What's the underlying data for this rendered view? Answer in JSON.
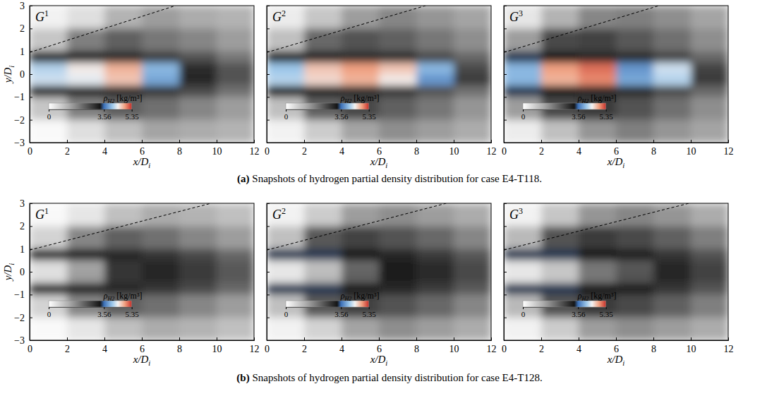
{
  "chart_data": [
    {
      "type": "heatmap",
      "title": "G1",
      "x_label": "x/Di",
      "y_label": "y/Di",
      "tick_labels": true,
      "xlim": [
        0,
        12
      ],
      "ylim": [
        -3,
        3
      ],
      "xticks": [
        0,
        2,
        4,
        6,
        8,
        10,
        12
      ],
      "yticks": [
        -3,
        -2,
        -1,
        0,
        1,
        2,
        3
      ],
      "x_edges": [
        0,
        2,
        4,
        6,
        8,
        10,
        12
      ],
      "y_edges": [
        3,
        2,
        1,
        0.5,
        0,
        -0.5,
        -1,
        -2,
        -3
      ],
      "cells": [
        [
          0.2,
          0.5,
          1.2,
          1.5,
          1.3,
          1.2
        ],
        [
          0.9,
          1.9,
          2.3,
          2.0,
          1.8,
          1.5
        ],
        [
          3.3,
          3.3,
          3.1,
          2.8,
          2.5,
          2.0
        ],
        [
          4.2,
          4.5,
          4.8,
          4.0,
          3.0,
          2.5
        ],
        [
          4.3,
          4.4,
          4.7,
          3.9,
          3.1,
          2.5
        ],
        [
          3.3,
          3.3,
          3.1,
          2.9,
          2.6,
          2.1
        ],
        [
          0.9,
          1.9,
          2.3,
          2.1,
          1.8,
          1.5
        ],
        [
          0.1,
          0.5,
          1.0,
          1.4,
          1.3,
          1.2
        ]
      ],
      "colorbar": {
        "label": "ρH2 [kg/m³]",
        "range": [
          0,
          5.35
        ],
        "ticks": [
          0,
          3.56,
          5.35
        ]
      },
      "series": [
        {
          "type": "line",
          "line_style": "dashed",
          "color": "#000000",
          "x": [
            0,
            7.8
          ],
          "y": [
            0.95,
            3
          ]
        }
      ]
    },
    {
      "type": "heatmap",
      "title": "G2",
      "x_label": "x/Di",
      "tick_labels": "x",
      "xlim": [
        0,
        12
      ],
      "ylim": [
        -3,
        3
      ],
      "xticks": [
        0,
        2,
        4,
        6,
        8,
        10,
        12
      ],
      "yticks": [
        -3,
        -2,
        -1,
        0,
        1,
        2,
        3
      ],
      "x_edges": [
        0,
        2,
        4,
        6,
        8,
        10,
        12
      ],
      "y_edges": [
        3,
        2,
        1,
        0.5,
        0,
        -0.5,
        -1,
        -2,
        -3
      ],
      "cells": [
        [
          0.3,
          0.9,
          1.5,
          1.8,
          1.6,
          1.4
        ],
        [
          1.0,
          2.2,
          2.5,
          2.3,
          2.0,
          1.7
        ],
        [
          3.3,
          3.2,
          3.0,
          3.0,
          2.6,
          2.2
        ],
        [
          4.1,
          4.7,
          4.9,
          4.7,
          4.0,
          2.6
        ],
        [
          4.2,
          4.6,
          4.8,
          4.5,
          3.8,
          2.8
        ],
        [
          3.3,
          3.2,
          3.0,
          2.9,
          2.5,
          2.1
        ],
        [
          1.0,
          2.3,
          2.6,
          2.3,
          2.0,
          1.6
        ],
        [
          0.2,
          0.8,
          1.4,
          1.7,
          1.5,
          1.3
        ]
      ],
      "colorbar": {
        "label": "ρH2 [kg/m³]",
        "range": [
          0,
          5.35
        ],
        "ticks": [
          0,
          3.56,
          5.35
        ]
      },
      "series": [
        {
          "type": "line",
          "line_style": "dashed",
          "color": "#000000",
          "x": [
            0,
            8.5
          ],
          "y": [
            0.95,
            3
          ]
        }
      ]
    },
    {
      "type": "heatmap",
      "title": "G3",
      "x_label": "x/Di",
      "tick_labels": "x",
      "xlim": [
        0,
        12
      ],
      "ylim": [
        -3,
        3
      ],
      "xticks": [
        0,
        2,
        4,
        6,
        8,
        10,
        12
      ],
      "yticks": [
        -3,
        -2,
        -1,
        0,
        1,
        2,
        3
      ],
      "x_edges": [
        0,
        2,
        4,
        6,
        8,
        10,
        12
      ],
      "y_edges": [
        3,
        2,
        1,
        0.5,
        0,
        -0.5,
        -1,
        -2,
        -3
      ],
      "cells": [
        [
          0.4,
          1.2,
          1.8,
          1.9,
          1.7,
          1.4
        ],
        [
          1.5,
          2.6,
          2.7,
          2.4,
          2.1,
          1.7
        ],
        [
          3.4,
          3.3,
          3.1,
          3.0,
          2.7,
          2.2
        ],
        [
          4.0,
          4.9,
          5.1,
          3.8,
          4.3,
          2.7
        ],
        [
          4.0,
          4.8,
          5.0,
          3.9,
          4.2,
          2.8
        ],
        [
          3.4,
          3.3,
          3.1,
          3.0,
          2.6,
          2.2
        ],
        [
          1.5,
          2.6,
          2.8,
          2.5,
          2.1,
          1.7
        ],
        [
          0.3,
          1.0,
          1.6,
          1.9,
          1.6,
          1.4
        ]
      ],
      "colorbar": {
        "label": "ρH2 [kg/m³]",
        "range": [
          0,
          5.35
        ],
        "ticks": [
          0,
          3.56,
          5.35
        ]
      },
      "series": [
        {
          "type": "line",
          "line_style": "dashed",
          "color": "#000000",
          "x": [
            0,
            8.3
          ],
          "y": [
            0.95,
            3
          ]
        }
      ]
    },
    {
      "type": "heatmap",
      "title": "G1",
      "x_label": "x/Di",
      "y_label": "y/Di",
      "tick_labels": true,
      "xlim": [
        0,
        12
      ],
      "ylim": [
        -3,
        3
      ],
      "xticks": [
        0,
        2,
        4,
        6,
        8,
        10,
        12
      ],
      "yticks": [
        -3,
        -2,
        -1,
        0,
        1,
        2,
        3
      ],
      "x_edges": [
        0,
        2,
        4,
        6,
        8,
        10,
        12
      ],
      "y_edges": [
        3,
        2,
        1,
        0.5,
        0,
        -0.5,
        -1,
        -2,
        -3
      ],
      "cells": [
        [
          0.1,
          0.4,
          1.0,
          1.3,
          1.2,
          1.0
        ],
        [
          0.7,
          1.8,
          2.3,
          2.1,
          1.8,
          1.5
        ],
        [
          3.3,
          3.3,
          3.1,
          2.9,
          2.6,
          2.2
        ],
        [
          0.5,
          1.4,
          2.9,
          3.1,
          2.8,
          2.4
        ],
        [
          0.5,
          1.5,
          2.9,
          3.1,
          2.8,
          2.4
        ],
        [
          3.3,
          3.3,
          3.1,
          2.9,
          2.6,
          2.2
        ],
        [
          0.7,
          1.8,
          2.3,
          2.1,
          1.8,
          1.5
        ],
        [
          0.1,
          0.4,
          1.0,
          1.3,
          1.2,
          1.0
        ]
      ],
      "colorbar": {
        "label": "ρH2 [kg/m³]",
        "range": [
          0,
          5.35
        ],
        "ticks": [
          0,
          3.56,
          5.35
        ]
      },
      "series": [
        {
          "type": "line",
          "line_style": "dashed",
          "color": "#000000",
          "x": [
            0,
            9.7
          ],
          "y": [
            0.95,
            3
          ]
        }
      ]
    },
    {
      "type": "heatmap",
      "title": "G2",
      "x_label": "x/Di",
      "tick_labels": "x",
      "xlim": [
        0,
        12
      ],
      "ylim": [
        -3,
        3
      ],
      "xticks": [
        0,
        2,
        4,
        6,
        8,
        10,
        12
      ],
      "yticks": [
        -3,
        -2,
        -1,
        0,
        1,
        2,
        3
      ],
      "x_edges": [
        0,
        2,
        4,
        6,
        8,
        10,
        12
      ],
      "y_edges": [
        3,
        2,
        1,
        0.5,
        0,
        -0.5,
        -1,
        -2,
        -3
      ],
      "cells": [
        [
          0.2,
          0.8,
          1.5,
          1.7,
          1.5,
          1.3
        ],
        [
          1.0,
          2.4,
          2.7,
          2.5,
          2.2,
          1.8
        ],
        [
          3.4,
          3.4,
          3.3,
          3.1,
          2.8,
          2.4
        ],
        [
          0.4,
          1.0,
          2.2,
          3.2,
          3.0,
          2.6
        ],
        [
          0.4,
          1.1,
          2.3,
          3.2,
          3.0,
          2.6
        ],
        [
          3.4,
          3.4,
          3.3,
          3.1,
          2.8,
          2.4
        ],
        [
          1.0,
          2.4,
          2.7,
          2.5,
          2.2,
          1.8
        ],
        [
          0.2,
          0.7,
          1.4,
          1.7,
          1.5,
          1.3
        ]
      ],
      "colorbar": {
        "label": "ρH2 [kg/m³]",
        "range": [
          0,
          5.35
        ],
        "ticks": [
          0,
          3.56,
          5.35
        ]
      },
      "series": [
        {
          "type": "line",
          "line_style": "dashed",
          "color": "#000000",
          "x": [
            0,
            9.6
          ],
          "y": [
            0.95,
            3
          ]
        }
      ]
    },
    {
      "type": "heatmap",
      "title": "G3",
      "x_label": "x/Di",
      "tick_labels": "x",
      "xlim": [
        0,
        12
      ],
      "ylim": [
        -3,
        3
      ],
      "xticks": [
        0,
        2,
        4,
        6,
        8,
        10,
        12
      ],
      "yticks": [
        -3,
        -2,
        -1,
        0,
        1,
        2,
        3
      ],
      "x_edges": [
        0,
        2,
        4,
        6,
        8,
        10,
        12
      ],
      "y_edges": [
        3,
        2,
        1,
        0.5,
        0,
        -0.5,
        -1,
        -2,
        -3
      ],
      "cells": [
        [
          0.2,
          0.9,
          1.6,
          1.8,
          1.6,
          1.3
        ],
        [
          1.1,
          2.5,
          2.8,
          2.6,
          2.3,
          1.9
        ],
        [
          3.4,
          3.4,
          3.3,
          3.2,
          2.9,
          2.5
        ],
        [
          0.4,
          0.9,
          2.0,
          2.4,
          3.1,
          2.7
        ],
        [
          0.4,
          0.9,
          2.0,
          2.5,
          3.1,
          2.7
        ],
        [
          3.4,
          3.4,
          3.3,
          3.2,
          2.9,
          2.5
        ],
        [
          1.1,
          2.5,
          2.8,
          2.6,
          2.3,
          1.9
        ],
        [
          0.2,
          0.8,
          1.5,
          1.7,
          1.5,
          1.3
        ]
      ],
      "colorbar": {
        "label": "ρH2 [kg/m³]",
        "range": [
          0,
          5.35
        ],
        "ticks": [
          0,
          3.56,
          5.35
        ]
      },
      "series": [
        {
          "type": "line",
          "line_style": "dashed",
          "color": "#000000",
          "x": [
            0,
            9.9
          ],
          "y": [
            0.95,
            3
          ]
        }
      ]
    }
  ],
  "captions": [
    {
      "label": "(a)",
      "text": "Snapshots of hydrogen partial density distribution for case E4-T118."
    },
    {
      "label": "(b)",
      "text": "Snapshots of hydrogen partial density distribution for case E4-T128."
    }
  ]
}
